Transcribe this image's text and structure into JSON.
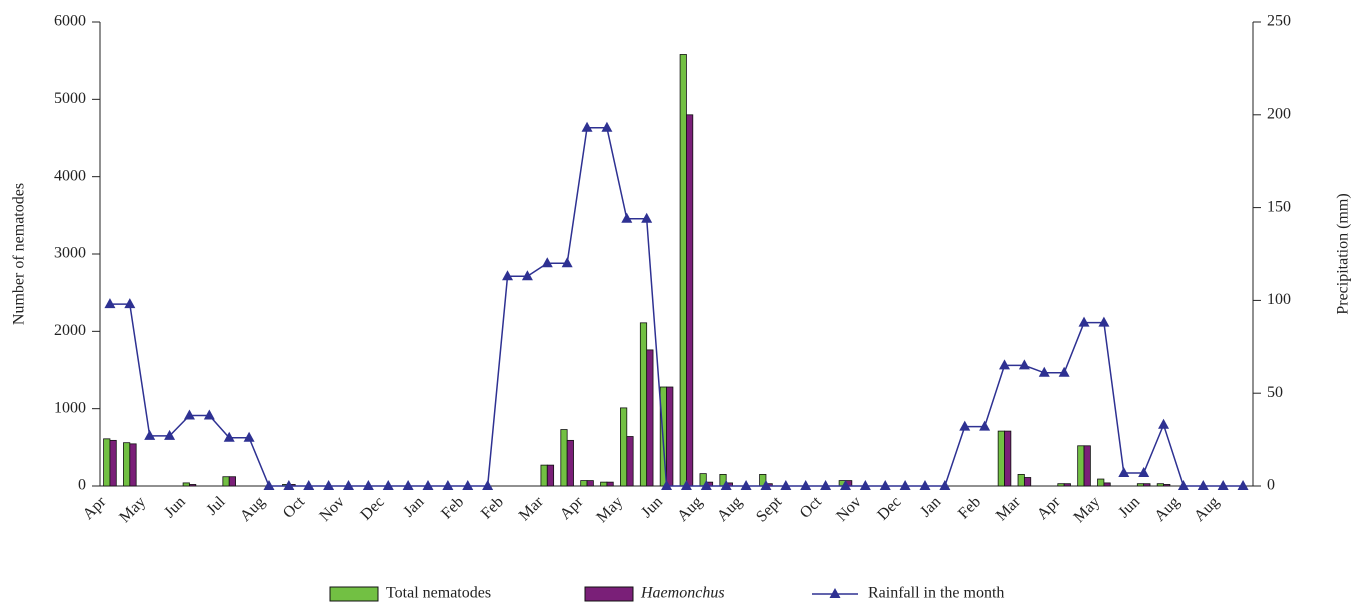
{
  "chart_data": {
    "type": "bar",
    "y_label": "Number of nematodes",
    "y2_label": "Precipitation (mm)",
    "categories": [
      "Apr",
      null,
      "May",
      null,
      "Jun",
      null,
      "Jul",
      null,
      "Aug",
      null,
      "Oct",
      null,
      "Nov",
      null,
      "Dec",
      null,
      "Jan",
      null,
      "Feb",
      null,
      "Feb",
      null,
      "Mar",
      null,
      "Apr",
      null,
      "May",
      null,
      "Jun",
      null,
      "Aug",
      null,
      "Aug",
      null,
      "Sept",
      null,
      "Oct",
      null,
      "Nov",
      null,
      "Dec",
      null,
      "Jan",
      null,
      "Feb",
      null,
      "Mar",
      null,
      "Apr",
      null,
      "May",
      null,
      "Jun",
      null,
      "Aug",
      null,
      "Aug",
      null
    ],
    "series": [
      {
        "name": "Total nematodes",
        "type": "bar",
        "color": "#72c043",
        "values": [
          610,
          560,
          0,
          0,
          40,
          0,
          120,
          0,
          0,
          20,
          0,
          0,
          0,
          0,
          0,
          0,
          0,
          0,
          0,
          0,
          0,
          0,
          270,
          730,
          70,
          50,
          1010,
          2110,
          1280,
          5580,
          160,
          150,
          0,
          150,
          0,
          0,
          0,
          70,
          0,
          0,
          0,
          0,
          0,
          0,
          0,
          710,
          150,
          0,
          30,
          520,
          90,
          0,
          30,
          30,
          0,
          0,
          0,
          0
        ]
      },
      {
        "name": "Haemonchus",
        "type": "bar",
        "color": "#7a1f78",
        "italic": true,
        "values": [
          590,
          545,
          0,
          0,
          20,
          0,
          120,
          0,
          0,
          20,
          0,
          0,
          0,
          0,
          0,
          0,
          0,
          0,
          0,
          0,
          0,
          0,
          270,
          590,
          70,
          50,
          640,
          1760,
          1280,
          4800,
          50,
          40,
          0,
          30,
          0,
          0,
          0,
          70,
          0,
          0,
          0,
          0,
          0,
          0,
          0,
          710,
          110,
          0,
          30,
          520,
          40,
          0,
          30,
          20,
          0,
          0,
          0,
          0
        ]
      },
      {
        "name": "Rainfall in the month",
        "type": "line",
        "axis": "y2",
        "color": "#2e3192",
        "values": [
          98,
          98,
          27,
          27,
          38,
          38,
          26,
          26,
          0,
          0,
          0,
          0,
          0,
          0,
          0,
          0,
          0,
          0,
          0,
          0,
          113,
          113,
          120,
          120,
          193,
          193,
          144,
          144,
          0,
          0,
          0,
          0,
          0,
          0,
          0,
          0,
          0,
          0,
          0,
          0,
          0,
          0,
          0,
          32,
          32,
          65,
          65,
          61,
          61,
          88,
          88,
          7,
          7,
          33,
          0,
          0,
          0,
          0
        ]
      }
    ],
    "ylim": [
      0,
      6000
    ],
    "yticks": [
      0,
      1000,
      2000,
      3000,
      4000,
      5000,
      6000
    ],
    "y2lim": [
      0,
      250
    ],
    "y2ticks": [
      0,
      50,
      100,
      150,
      200,
      250
    ],
    "grid": false
  }
}
